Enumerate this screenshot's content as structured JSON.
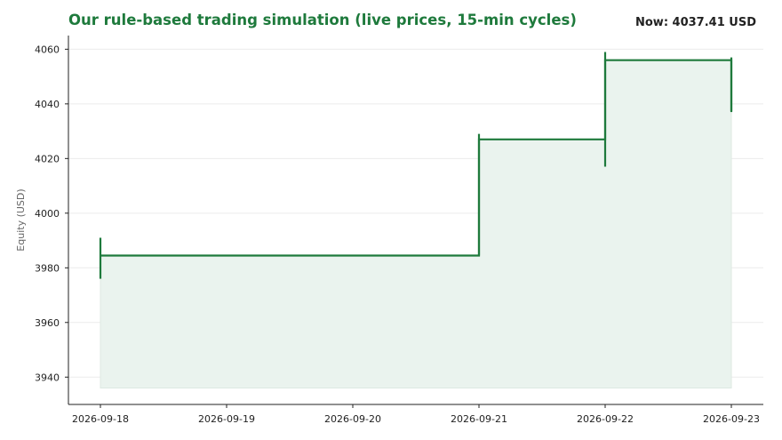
{
  "header": {
    "title": "Our rule-based trading simulation (live prices, 15-min cycles)",
    "now_label": "Now: 4037.41 USD"
  },
  "chart_data": {
    "type": "line",
    "step": true,
    "title": "Our rule-based trading simulation (live prices, 15-min cycles)",
    "xlabel": "",
    "ylabel": "Equity (USD)",
    "ylim": [
      3930,
      4065
    ],
    "yticks": [
      3940,
      3960,
      3980,
      4000,
      4020,
      4040,
      4060
    ],
    "xticks": [
      "2026-09-18",
      "2026-09-19",
      "2026-09-20",
      "2026-09-21",
      "2026-09-22",
      "2026-09-23"
    ],
    "fill_baseline": 3936,
    "grid": true,
    "colors": {
      "line": "#1e7a3c",
      "fill": "#eaf3ee",
      "grid": "#ececec"
    },
    "series": [
      {
        "points": [
          {
            "x": "2026-09-18",
            "y": 3984.5
          },
          {
            "x": "2026-09-21",
            "y": 3984.5
          },
          {
            "x": "2026-09-21",
            "y": 4027
          },
          {
            "x": "2026-09-22",
            "y": 4027
          },
          {
            "x": "2026-09-22",
            "y": 4056
          },
          {
            "x": "2026-09-23",
            "y": 4056
          },
          {
            "x": "2026-09-23",
            "y": 4037.41
          }
        ],
        "ranges": [
          {
            "x": "2026-09-18",
            "low": 3976,
            "high": 3991
          },
          {
            "x": "2026-09-21",
            "low": 3984.5,
            "high": 4029
          },
          {
            "x": "2026-09-22",
            "low": 4017,
            "high": 4059
          },
          {
            "x": "2026-09-23",
            "low": 4037,
            "high": 4057
          }
        ]
      }
    ]
  }
}
